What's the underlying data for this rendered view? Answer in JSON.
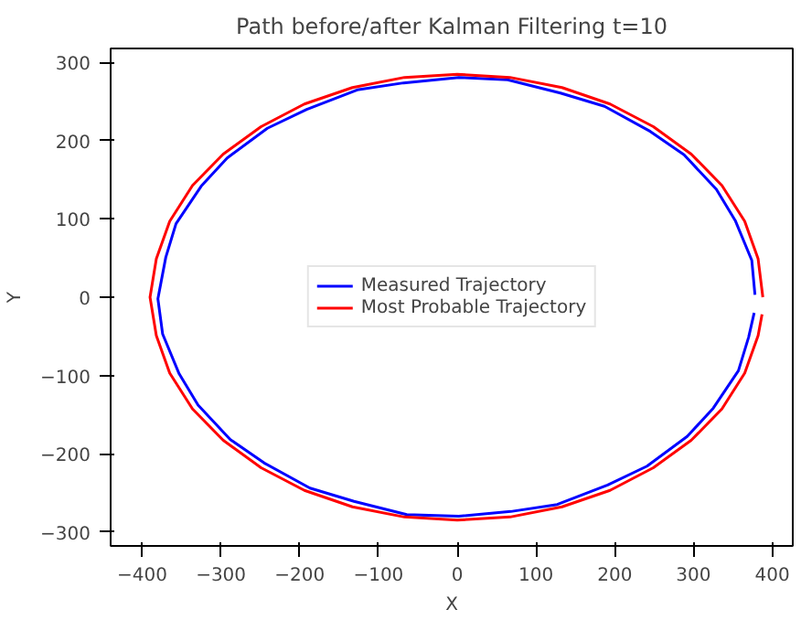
{
  "chart_data": {
    "type": "line",
    "title": "Path before/after Kalman Filtering t=10",
    "xlabel": "X",
    "ylabel": "Y",
    "xlim": [
      -440,
      426
    ],
    "ylim": [
      -318,
      318
    ],
    "xticks": [
      -400,
      -300,
      -200,
      -100,
      0,
      100,
      200,
      300,
      400
    ],
    "yticks": [
      -300,
      -200,
      -100,
      0,
      100,
      200,
      300
    ],
    "grid": false,
    "legend": "center",
    "series": [
      {
        "name": "Measured Trajectory",
        "color": "#0000ff",
        "x": [
          378,
          374,
          353,
          329,
          288,
          245,
          187,
          131,
          64,
          2,
          -68,
          -127,
          -191,
          -241,
          -292,
          -325,
          -357,
          -370,
          -380,
          -374,
          -353,
          -329,
          -288,
          -245,
          -187,
          -131,
          -64,
          2,
          68,
          127,
          191,
          241,
          292,
          325,
          357,
          370,
          377
        ],
        "values": [
          3,
          47,
          98,
          138,
          182,
          212,
          244,
          261,
          278,
          281,
          274,
          265,
          240,
          216,
          178,
          142,
          94,
          51,
          -2,
          -47,
          -98,
          -138,
          -182,
          -212,
          -244,
          -261,
          -278,
          -280,
          -274,
          -265,
          -240,
          -216,
          -178,
          -142,
          -94,
          -51,
          -20
        ]
      },
      {
        "name": "Most Probable Trajectory",
        "color": "#ff0000",
        "x": [
          388,
          382,
          365,
          336,
          297,
          249,
          194,
          133,
          67,
          0,
          -67,
          -133,
          -194,
          -249,
          -297,
          -336,
          -365,
          -382,
          -390,
          -382,
          -365,
          -336,
          -297,
          -249,
          -194,
          -133,
          -67,
          0,
          67,
          133,
          194,
          249,
          297,
          336,
          365,
          382,
          387
        ],
        "values": [
          0,
          49,
          97,
          143,
          183,
          218,
          247,
          268,
          281,
          285,
          281,
          268,
          247,
          218,
          183,
          143,
          97,
          49,
          0,
          -49,
          -97,
          -143,
          -183,
          -218,
          -247,
          -268,
          -281,
          -285,
          -281,
          -268,
          -247,
          -218,
          -183,
          -143,
          -97,
          -49,
          -22
        ]
      }
    ]
  }
}
